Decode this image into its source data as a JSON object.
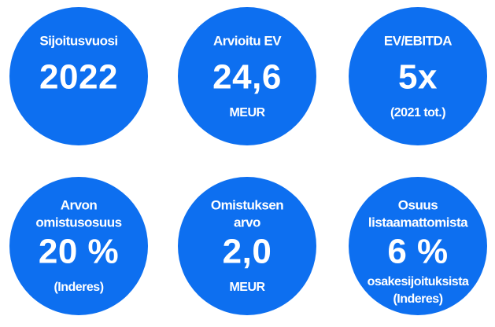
{
  "circles": [
    {
      "label": [
        "Sijoitusvuosi"
      ],
      "value": "2022",
      "note": []
    },
    {
      "label": [
        "Arvioitu EV"
      ],
      "value": "24,6",
      "note": [
        "MEUR"
      ]
    },
    {
      "label": [
        "EV/EBITDA"
      ],
      "value": "5x",
      "note": [
        "(2021 tot.)"
      ]
    },
    {
      "label": [
        "Arvon",
        "omistusosuus"
      ],
      "value": "20 %",
      "note": [
        "(Inderes)"
      ]
    },
    {
      "label": [
        "Omistuksen",
        "arvo"
      ],
      "value": "2,0",
      "note": [
        "MEUR"
      ]
    },
    {
      "label": [
        "Osuus",
        "listaamattomista"
      ],
      "value": "6 %",
      "note": [
        "osakesijoituksista",
        "(Inderes)"
      ]
    }
  ]
}
